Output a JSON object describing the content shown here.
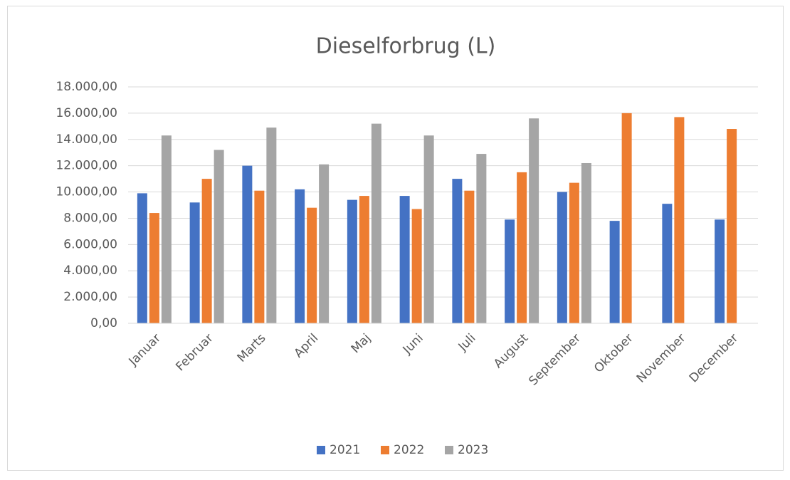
{
  "chart_data": {
    "type": "bar",
    "title": "Dieselforbrug (L)",
    "categories": [
      "Januar",
      "Februar",
      "Marts",
      "April",
      "Maj",
      "Juni",
      "Juli",
      "August",
      "September",
      "Oktober",
      "November",
      "December"
    ],
    "series": [
      {
        "name": "2021",
        "color": "#4472c4",
        "values": [
          9900,
          9200,
          12000,
          10200,
          9400,
          9700,
          11000,
          7900,
          10000,
          7800,
          9100,
          7900
        ]
      },
      {
        "name": "2022",
        "color": "#ed7d31",
        "values": [
          8400,
          11000,
          10100,
          8800,
          9700,
          8700,
          10100,
          11500,
          10700,
          16000,
          15700,
          14800
        ]
      },
      {
        "name": "2023",
        "color": "#a5a5a5",
        "values": [
          14300,
          13200,
          14900,
          12100,
          15200,
          14300,
          12900,
          15600,
          12200,
          null,
          null,
          null
        ]
      }
    ],
    "ylim": [
      0,
      18000
    ],
    "yticks": [
      {
        "value": 0,
        "label": "0,00"
      },
      {
        "value": 2000,
        "label": "2.000,00"
      },
      {
        "value": 4000,
        "label": "4.000,00"
      },
      {
        "value": 6000,
        "label": "6.000,00"
      },
      {
        "value": 8000,
        "label": "8.000,00"
      },
      {
        "value": 10000,
        "label": "10.000,00"
      },
      {
        "value": 12000,
        "label": "12.000,00"
      },
      {
        "value": 14000,
        "label": "14.000,00"
      },
      {
        "value": 16000,
        "label": "16.000,00"
      },
      {
        "value": 18000,
        "label": "18.000,00"
      }
    ],
    "grid": true,
    "legend": "bottom"
  }
}
